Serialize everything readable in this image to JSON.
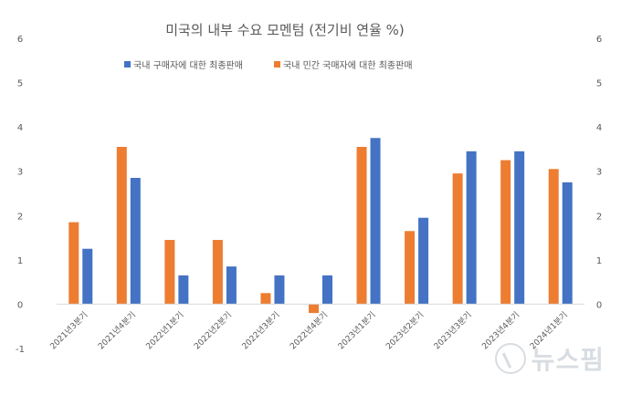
{
  "chart_data": {
    "type": "bar",
    "title": "미국의 내부 수요 모멘텀 (전기비 연율 %)",
    "categories": [
      "2021년3분기",
      "2021년4분기",
      "2022년1분기",
      "2022년2분기",
      "2022년3분기",
      "2022년4분기",
      "2023년1분기",
      "2023년2분기",
      "2023년3분기",
      "2023년4분기",
      "2024년1분기"
    ],
    "series": [
      {
        "name": "국내 민간 국매자에 대한 최종판매",
        "color": "#ed7d31",
        "values": [
          1.85,
          3.55,
          1.45,
          1.45,
          0.25,
          -0.2,
          3.55,
          1.65,
          2.95,
          3.25,
          3.05
        ]
      },
      {
        "name": "국내 구매자에 대한 최종판매",
        "color": "#4472c4",
        "values": [
          1.25,
          2.85,
          0.65,
          0.85,
          0.65,
          0.65,
          3.75,
          1.95,
          3.45,
          3.45,
          2.75
        ]
      }
    ],
    "legend_order": [
      1,
      0
    ],
    "legend_position": "top",
    "ylim": [
      -1,
      6
    ],
    "y_ticks": [
      -1,
      0,
      1,
      2,
      3,
      4,
      5,
      6
    ],
    "secondary_y_ticks": [
      0,
      1,
      2,
      3,
      4,
      5,
      6
    ],
    "grid": false,
    "xlabel": "",
    "ylabel": ""
  },
  "watermark": {
    "text": "뉴스핌"
  }
}
